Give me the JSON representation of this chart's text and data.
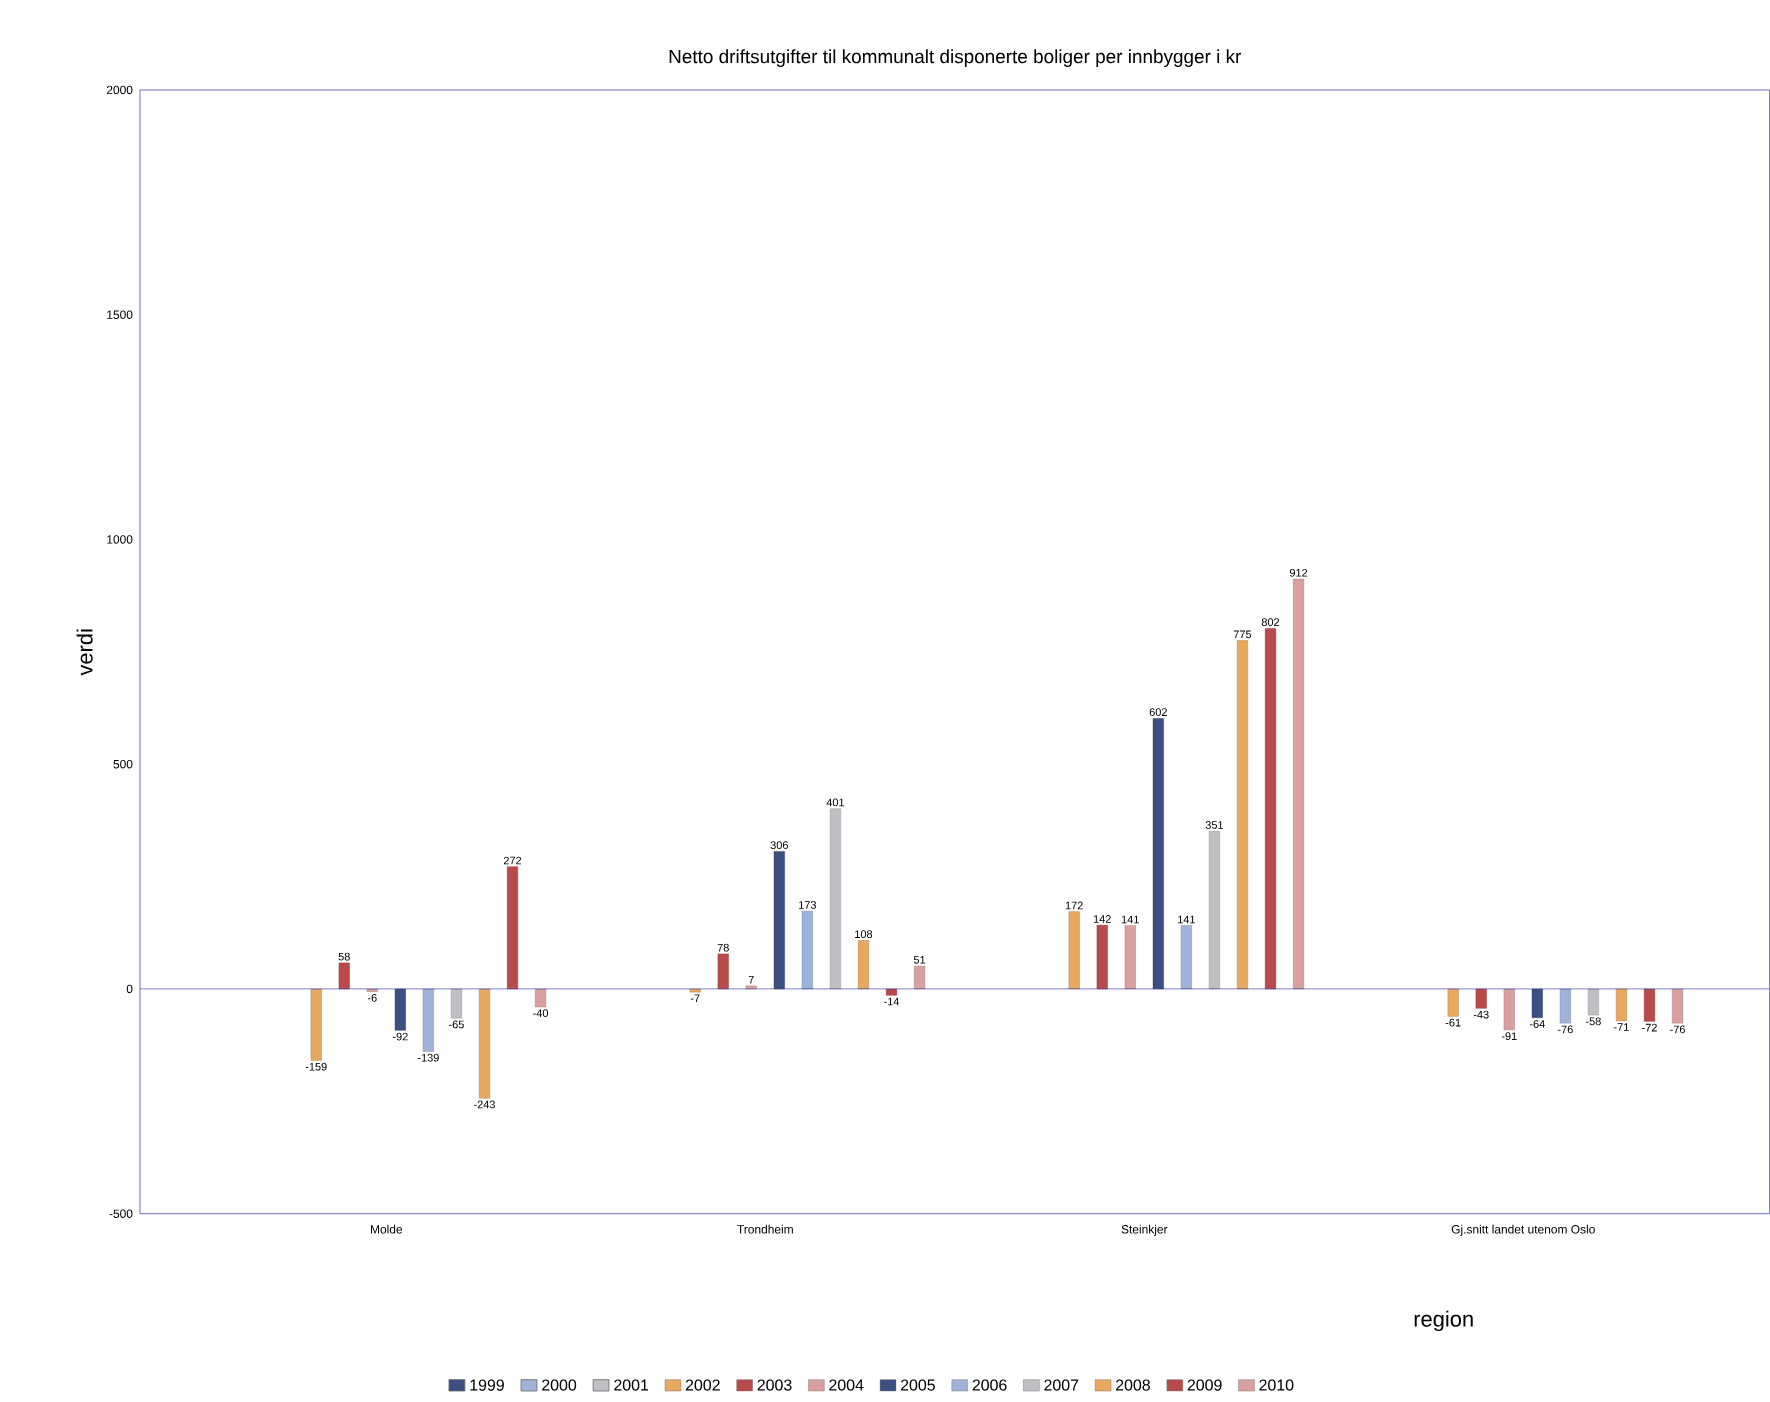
{
  "chart_data": {
    "type": "bar",
    "title": "Netto driftsutgifter til kommunalt disponerte boliger per innbygger i kr",
    "xlabel": "region",
    "ylabel": "verdi",
    "categories": [
      "Molde",
      "Trondheim",
      "Steinkjer",
      "Gj.snitt landet utenom Oslo"
    ],
    "series": [
      {
        "name": "1999",
        "color": "#3b4f80",
        "values": [
          null,
          null,
          null,
          null
        ]
      },
      {
        "name": "2000",
        "color": "#9fb3d9",
        "values": [
          null,
          null,
          null,
          null
        ]
      },
      {
        "name": "2001",
        "color": "#c0c0c4",
        "values": [
          null,
          null,
          null,
          null
        ]
      },
      {
        "name": "2002",
        "color": "#e8a860",
        "values": [
          -159,
          -7,
          172,
          -61
        ]
      },
      {
        "name": "2003",
        "color": "#b94a4a",
        "values": [
          58,
          78,
          142,
          -43
        ]
      },
      {
        "name": "2004",
        "color": "#d9a0a0",
        "values": [
          -6,
          7,
          141,
          -91
        ]
      },
      {
        "name": "2005",
        "color": "#3b4f80",
        "values": [
          -92,
          306,
          602,
          -64
        ]
      },
      {
        "name": "2006",
        "color": "#9fb3d9",
        "values": [
          -139,
          173,
          141,
          -76
        ]
      },
      {
        "name": "2007",
        "color": "#c0c0c4",
        "values": [
          -65,
          401,
          351,
          -58
        ]
      },
      {
        "name": "2008",
        "color": "#e8a860",
        "values": [
          -243,
          108,
          775,
          -71
        ]
      },
      {
        "name": "2009",
        "color": "#b94a4a",
        "values": [
          272,
          -14,
          802,
          -72
        ]
      },
      {
        "name": "2010",
        "color": "#d9a0a0",
        "values": [
          -40,
          51,
          912,
          -76
        ]
      }
    ],
    "ylim": [
      -500,
      2000
    ],
    "yticks": [
      -500,
      0,
      500,
      1000,
      1500,
      2000
    ],
    "ref_lines": [
      {
        "axis": "y",
        "value": 0,
        "color": "#4c4ca6"
      }
    ],
    "data_labels": true,
    "legend": "bottom",
    "grid": false
  }
}
